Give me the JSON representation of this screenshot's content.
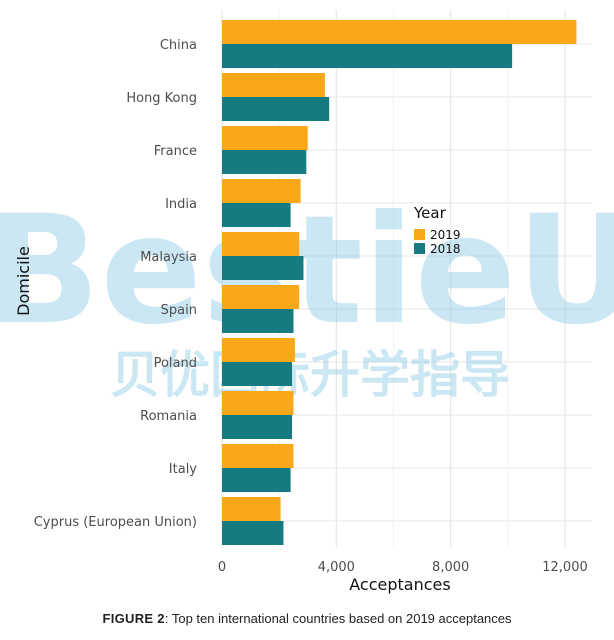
{
  "chart_data": {
    "type": "bar",
    "orientation": "horizontal",
    "categories": [
      "China",
      "Hong Kong",
      "France",
      "India",
      "Malaysia",
      "Spain",
      "Poland",
      "Romania",
      "Italy",
      "Cyprus (European Union)"
    ],
    "series": [
      {
        "name": "2019",
        "color": "#FAA819",
        "values": [
          12400,
          3600,
          3000,
          2750,
          2700,
          2700,
          2550,
          2500,
          2500,
          2050
        ]
      },
      {
        "name": "2018",
        "color": "#167B80",
        "values": [
          10150,
          3750,
          2950,
          2400,
          2850,
          2500,
          2450,
          2450,
          2400,
          2150
        ]
      }
    ],
    "xlabel": "Acceptances",
    "ylabel": "Domicile",
    "xlim": [
      0,
      13000
    ],
    "xticks": [
      0,
      4000,
      8000,
      12000
    ],
    "xtick_labels": [
      "0",
      "4,000",
      "8,000",
      "12,000"
    ],
    "legend": {
      "title": "Year",
      "placement": "center-right",
      "entries": [
        "2019",
        "2018"
      ]
    },
    "grid": true
  },
  "caption": {
    "label": "FIGURE 2",
    "text": ": Top ten international countries based on 2019 acceptances"
  },
  "watermark": {
    "latin": "BestieU",
    "cjk": "贝优国际升学指导",
    "color": "#8ECAE6"
  }
}
